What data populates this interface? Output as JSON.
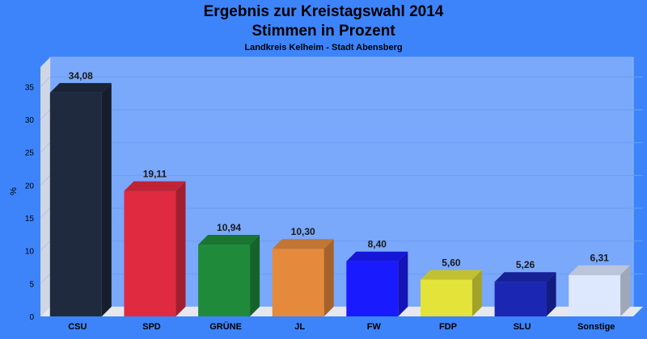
{
  "chart_data": {
    "type": "bar",
    "title": "Ergebnis zur Kreistagswahl 2014",
    "subtitle": "Stimmen in Prozent",
    "caption": "Landkreis Kelheim - Stadt Abensberg",
    "xlabel": "",
    "ylabel": "%",
    "ylim": [
      0,
      38
    ],
    "yticks": [
      0,
      5,
      10,
      15,
      20,
      25,
      30,
      35
    ],
    "grid": true,
    "categories": [
      "CSU",
      "SPD",
      "GRÜNE",
      "JL",
      "FW",
      "FDP",
      "SLU",
      "Sonstige"
    ],
    "values": [
      34.08,
      19.11,
      10.94,
      10.3,
      8.4,
      5.6,
      5.26,
      6.31
    ],
    "value_labels": [
      "34,08",
      "19,11",
      "10,94",
      "10,30",
      "8,40",
      "5,60",
      "5,26",
      "6,31"
    ],
    "colors": [
      "#1f2a3f",
      "#e02a40",
      "#1f8a3a",
      "#e58a3c",
      "#1a1aff",
      "#e3e33a",
      "#1b27b3",
      "#dde8ff"
    ]
  }
}
